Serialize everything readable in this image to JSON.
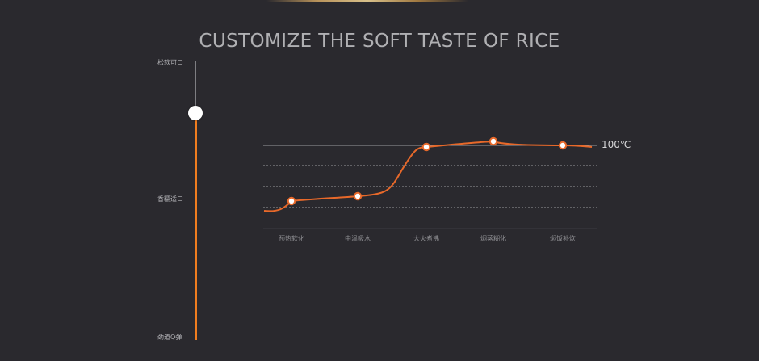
{
  "title": "CUSTOMIZE THE SOFT TASTE OF RICE",
  "slider": {
    "top_label": "松软可口",
    "middle_label": "香糯适口",
    "bottom_label": "劲道Q弹",
    "value": 0.8
  },
  "chart_data": {
    "type": "line",
    "categories": [
      "预热软化",
      "中温吸水",
      "大火煮沸",
      "焖蒸糊化",
      "焖饭补炊"
    ],
    "reference_label": "100℃",
    "colors": {
      "line": "#e8692a",
      "point_fill": "#ffffff",
      "grid": "#9a9a9e"
    }
  }
}
